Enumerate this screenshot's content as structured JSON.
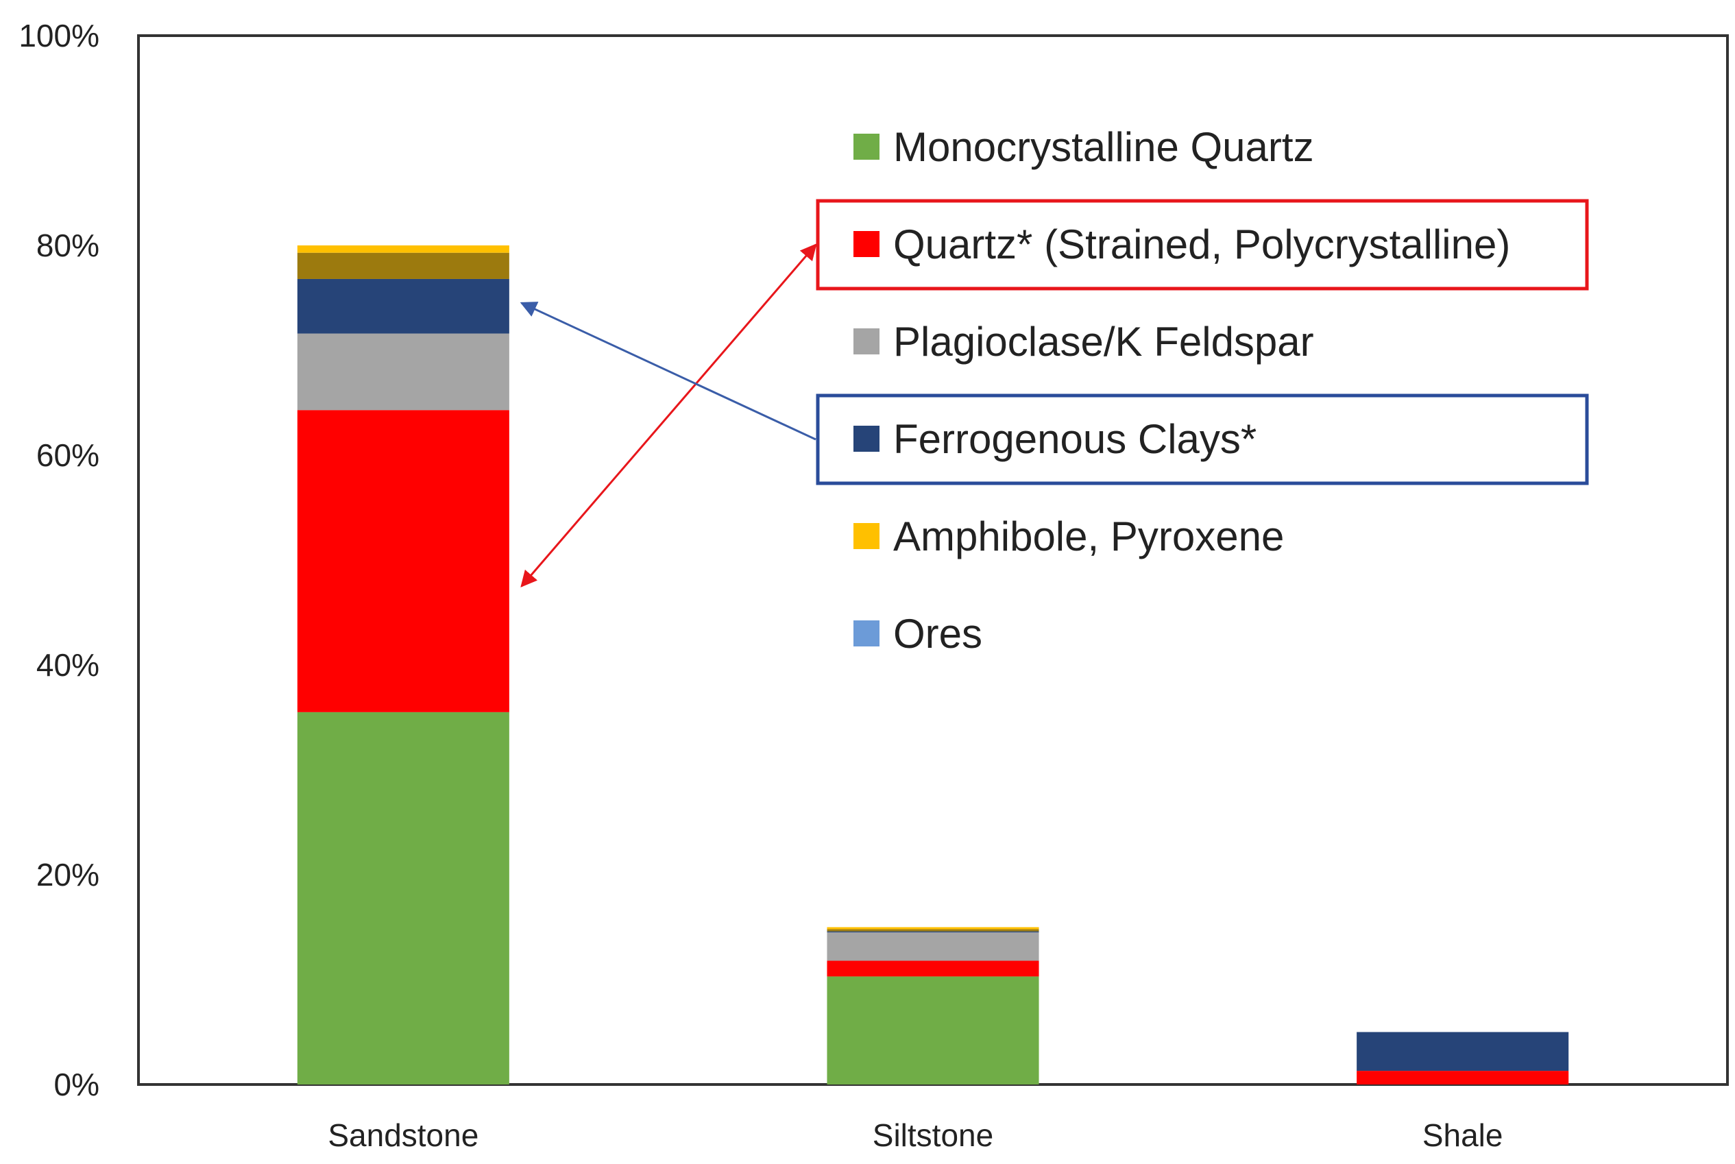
{
  "chart_data": {
    "type": "bar",
    "stacked": true,
    "title": "",
    "xlabel": "",
    "ylabel": "",
    "ylim": [
      0,
      100
    ],
    "y_ticks": [
      "0%",
      "20%",
      "40%",
      "60%",
      "80%",
      "100%"
    ],
    "categories": [
      "Sandstone",
      "Siltstone",
      "Shale"
    ],
    "series": [
      {
        "name": "Monocrystalline Quartz",
        "color": "#70AD47",
        "values": [
          35.5,
          10.3,
          0
        ]
      },
      {
        "name": "Quartz* (Strained, Polycrystalline)",
        "color": "#FF0000",
        "values": [
          28.8,
          1.5,
          1.3
        ]
      },
      {
        "name": "Plagioclase/K Feldspar",
        "color": "#A5A5A5",
        "values": [
          7.3,
          2.7,
          0
        ]
      },
      {
        "name": "Ferrogenous Clays*",
        "color": "#264478",
        "values": [
          5.2,
          0.1,
          3.7
        ]
      },
      {
        "name": "",
        "color": "#9C7A0E",
        "values": [
          2.5,
          0.2,
          0
        ]
      },
      {
        "name": "Amphibole, Pyroxene",
        "color": "#FFC000",
        "values": [
          0.7,
          0.2,
          0
        ]
      },
      {
        "name": "Ores",
        "color": "#6C9BD8",
        "values": [
          0,
          0,
          0
        ]
      }
    ],
    "legend": {
      "placement": "inside-right",
      "entries": [
        {
          "label": "Monocrystalline Quartz",
          "color": "#70AD47",
          "highlight": ""
        },
        {
          "label": "Quartz* (Strained, Polycrystalline)",
          "color": "#FF0000",
          "highlight": "#E8161B"
        },
        {
          "label": "Plagioclase/K Feldspar",
          "color": "#A5A5A5",
          "highlight": ""
        },
        {
          "label": "Ferrogenous Clays*",
          "color": "#264478",
          "highlight": "#2A4C9A"
        },
        {
          "label": "Amphibole, Pyroxene",
          "color": "#FFC000",
          "highlight": ""
        },
        {
          "label": "Ores",
          "color": "#6C9BD8",
          "highlight": ""
        }
      ]
    },
    "annotations": [
      {
        "type": "arrow",
        "from_legend": "Quartz* (Strained, Polycrystalline)",
        "to_category": "Sandstone",
        "color": "#E8161B"
      },
      {
        "type": "arrow",
        "from_legend": "Ferrogenous Clays*",
        "to_category": "Sandstone",
        "color": "#3A5DA8"
      }
    ],
    "grid": false
  }
}
